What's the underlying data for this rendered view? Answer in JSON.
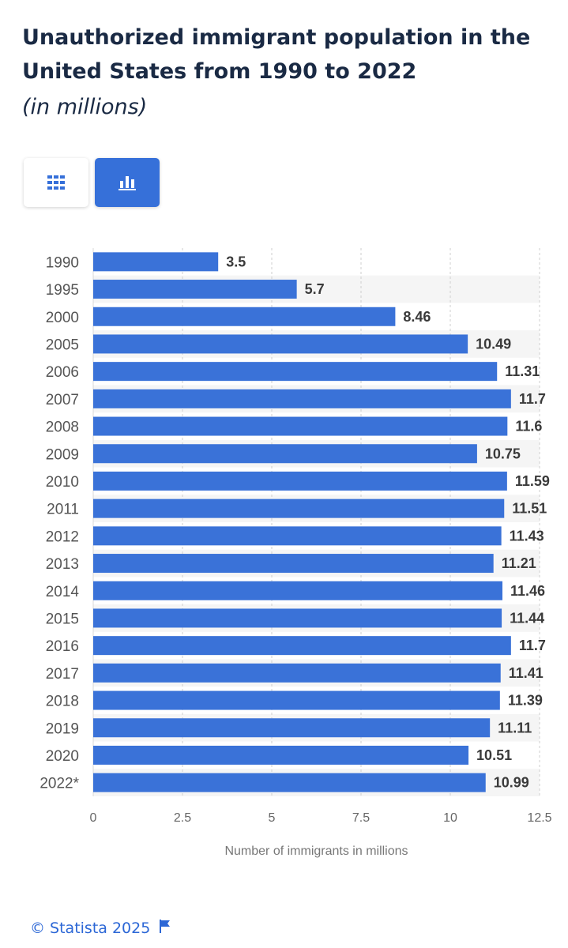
{
  "header": {
    "title": "Unauthorized immigrant population in the United States from 1990 to 2022",
    "subtitle": "(in millions)"
  },
  "view_toggle": {
    "table_icon": "grid-table-icon",
    "chart_icon": "bar-chart-icon",
    "active": "chart"
  },
  "colors": {
    "bar": "#3a72d8",
    "accent": "#2c67d6",
    "title": "#1a2a44",
    "stripe": "#f5f5f5"
  },
  "chart_data": {
    "type": "bar",
    "orientation": "horizontal",
    "title": "Unauthorized immigrant population in the United States from 1990 to 2022",
    "subtitle": "(in millions)",
    "categories": [
      "1990",
      "1995",
      "2000",
      "2005",
      "2006",
      "2007",
      "2008",
      "2009",
      "2010",
      "2011",
      "2012",
      "2013",
      "2014",
      "2015",
      "2016",
      "2017",
      "2018",
      "2019",
      "2020",
      "2022*"
    ],
    "values": [
      3.5,
      5.7,
      8.46,
      10.49,
      11.31,
      11.7,
      11.6,
      10.75,
      11.59,
      11.51,
      11.43,
      11.21,
      11.46,
      11.44,
      11.7,
      11.41,
      11.39,
      11.11,
      10.51,
      10.99
    ],
    "data_labels": [
      "3.5",
      "5.7",
      "8.46",
      "10.49",
      "11.31",
      "11.7",
      "11.6",
      "10.75",
      "11.59",
      "11.51",
      "11.43",
      "11.21",
      "11.46",
      "11.44",
      "11.7",
      "11.41",
      "11.39",
      "11.11",
      "10.51",
      "10.99"
    ],
    "xlabel": "Number of immigrants in millions",
    "ylabel": "",
    "xlim": [
      0,
      12.5
    ],
    "ticks": [
      0,
      2.5,
      5,
      7.5,
      10,
      12.5
    ],
    "tick_labels": [
      "0",
      "2.5",
      "5",
      "7.5",
      "10",
      "12.5"
    ],
    "grid": true
  },
  "footer": {
    "credit": "© Statista 2025",
    "flag_icon": "flag-icon"
  }
}
